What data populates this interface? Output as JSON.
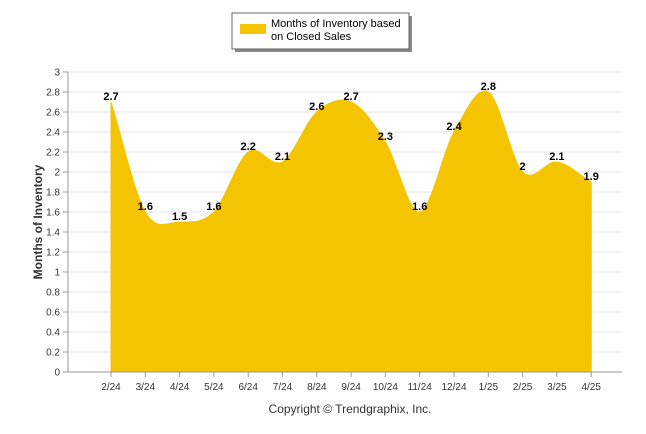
{
  "chart_data": {
    "type": "area",
    "categories": [
      "2/24",
      "3/24",
      "4/24",
      "5/24",
      "6/24",
      "7/24",
      "8/24",
      "9/24",
      "10/24",
      "11/24",
      "12/24",
      "1/25",
      "2/25",
      "3/25",
      "4/25"
    ],
    "series": [
      {
        "name": "Months of Inventory based on Closed Sales",
        "values": [
          2.7,
          1.6,
          1.5,
          1.6,
          2.2,
          2.1,
          2.6,
          2.7,
          2.3,
          1.6,
          2.4,
          2.8,
          2.0,
          2.1,
          1.9
        ],
        "labels": [
          "2.7",
          "1.6",
          "1.5",
          "1.6",
          "2.2",
          "2.1",
          "2.6",
          "2.7",
          "2.3",
          "1.6",
          "2.4",
          "2.8",
          "2",
          "2.1",
          "1.9"
        ]
      }
    ],
    "ylabel": "Months of Inventory",
    "ylim": [
      0,
      3
    ],
    "yticks": [
      "0",
      "0.2",
      "0.4",
      "0.6",
      "0.8",
      "1",
      "1.2",
      "1.4",
      "1.6",
      "1.8",
      "2",
      "2.2",
      "2.4",
      "2.6",
      "2.8",
      "3"
    ],
    "grid": true,
    "legend_position": "top-center",
    "color": "#F5C400",
    "credit": "Copyright © Trendgraphix, Inc."
  }
}
